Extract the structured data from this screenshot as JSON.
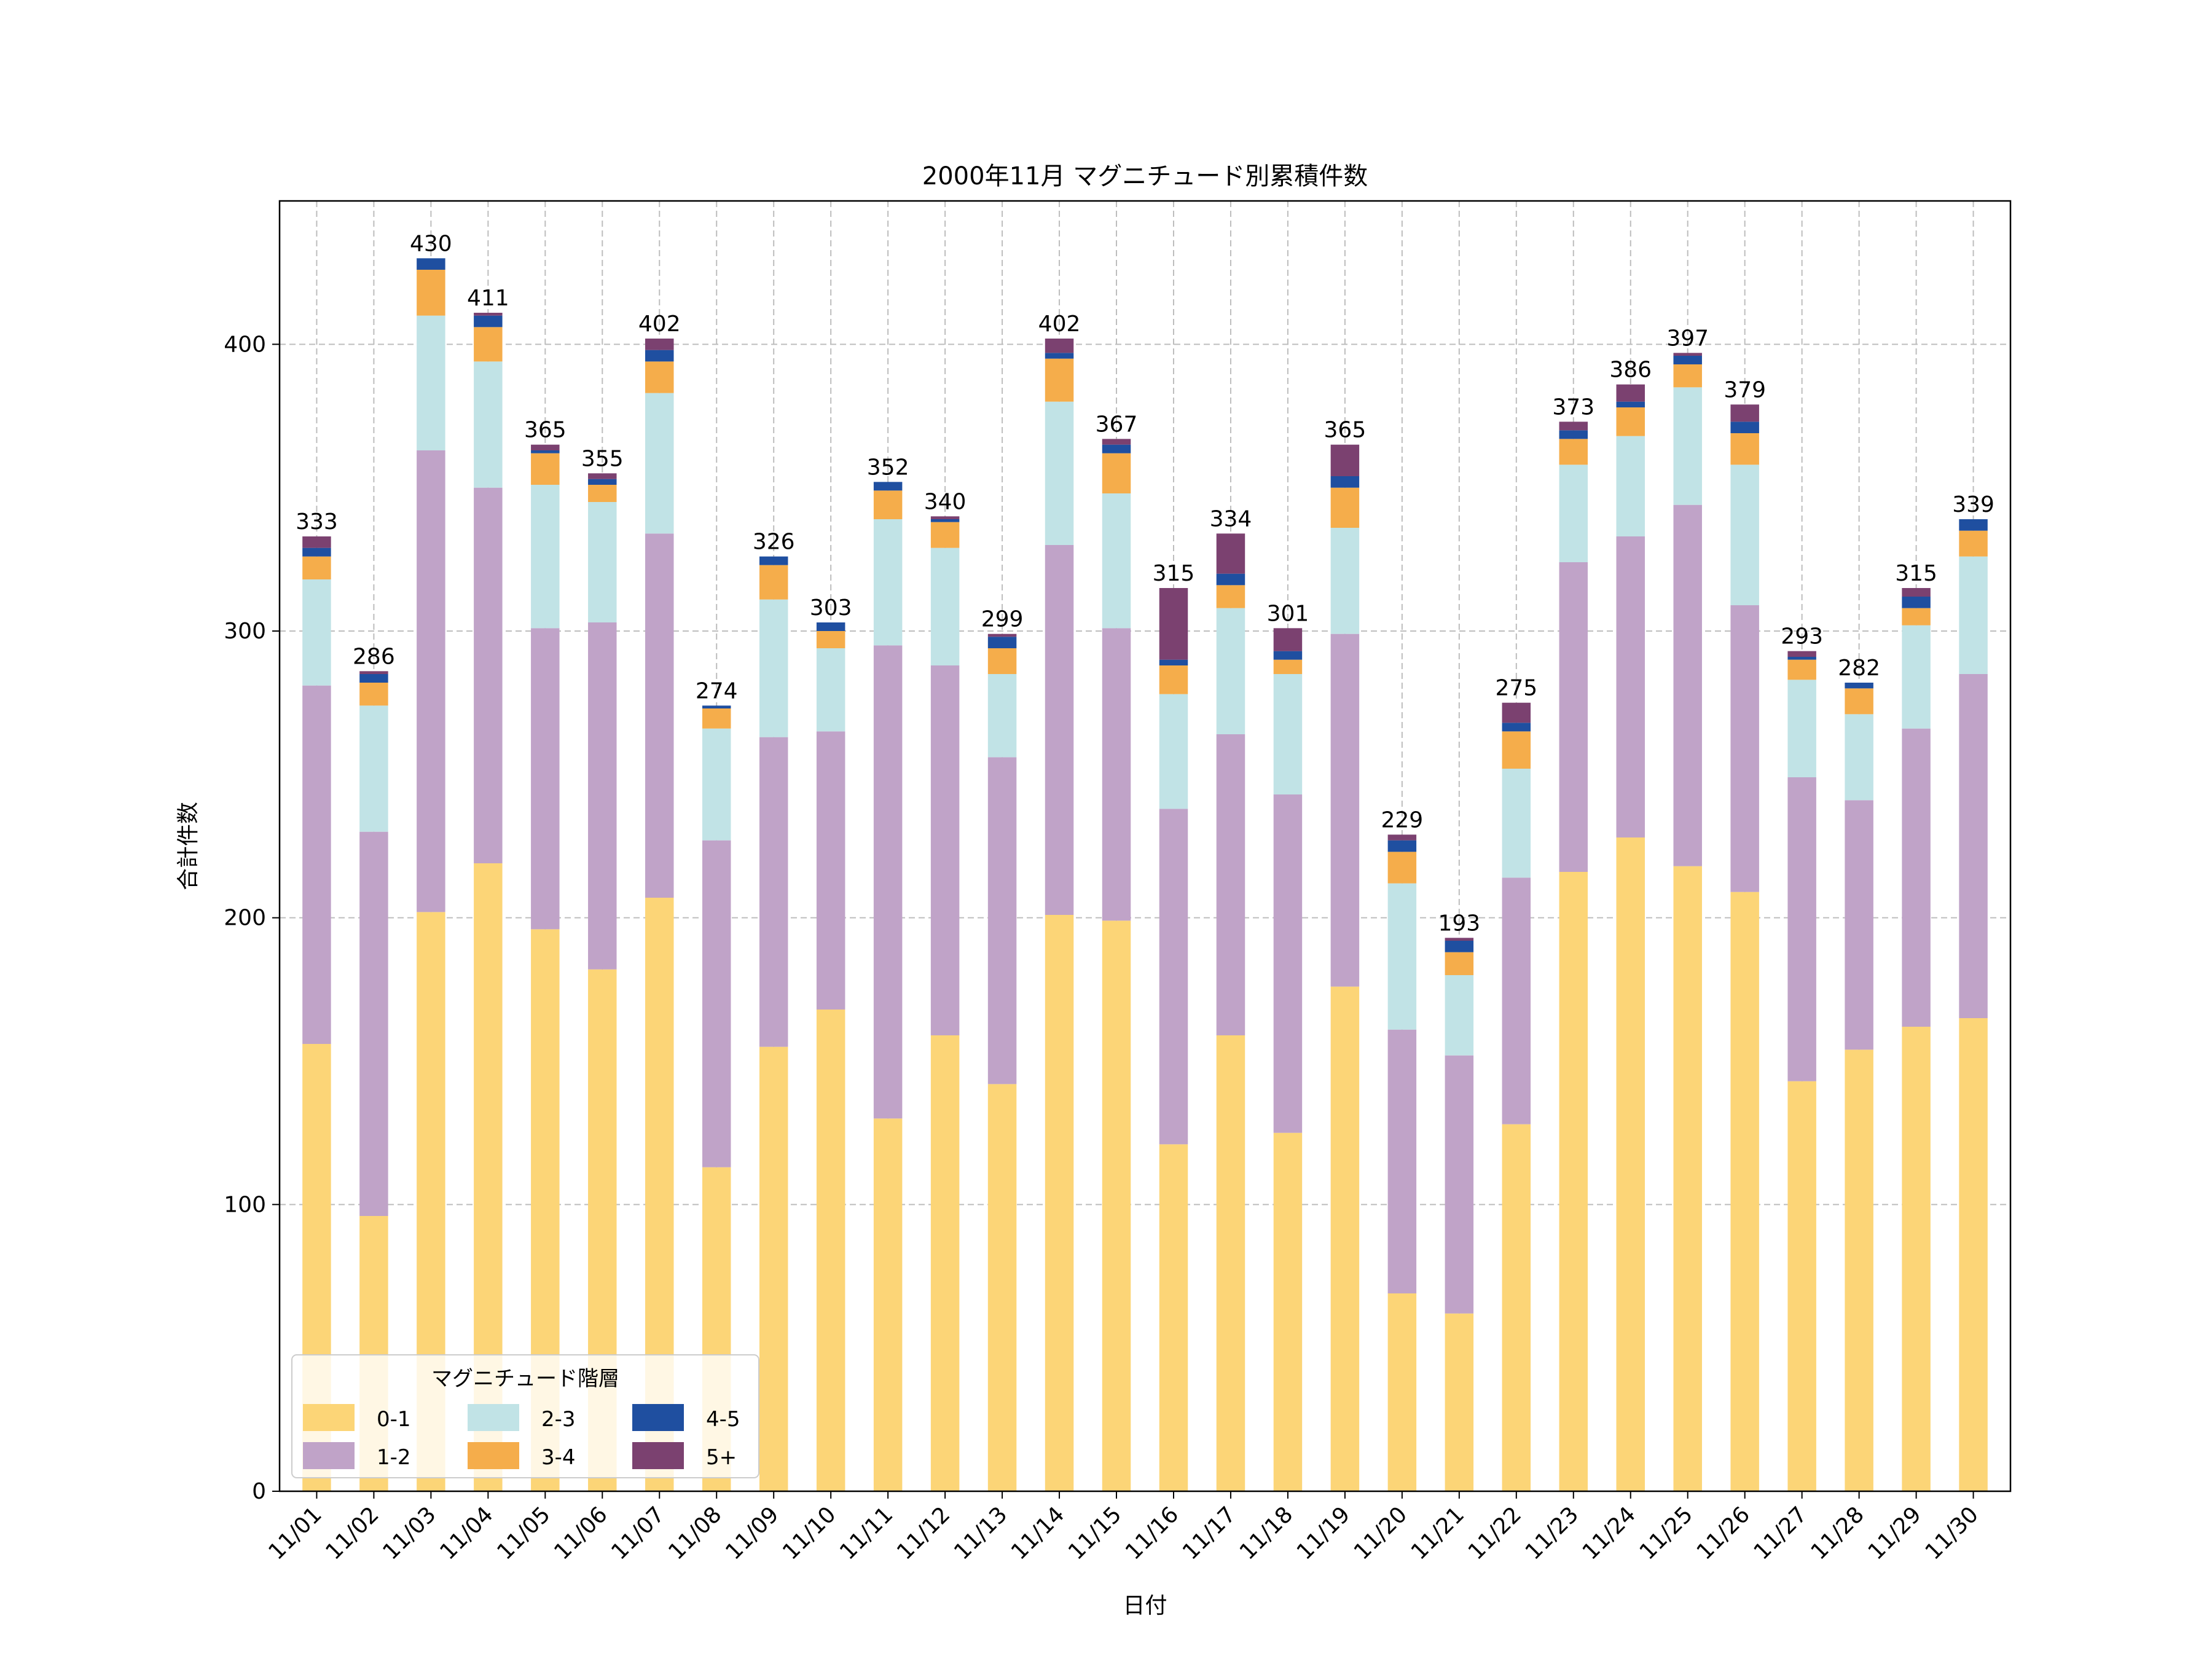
{
  "chart_data": {
    "type": "bar",
    "stacked": true,
    "title": "2000年11月 マグニチュード別累積件数",
    "xlabel": "日付",
    "ylabel": "合計件数",
    "ylim": [
      0,
      450
    ],
    "yticks": [
      0,
      100,
      200,
      300,
      400
    ],
    "grid": true,
    "legend": {
      "title": "マグニチュード階層",
      "placement": "bottom-left",
      "columns": 3
    },
    "categories": [
      "11/01",
      "11/02",
      "11/03",
      "11/04",
      "11/05",
      "11/06",
      "11/07",
      "11/08",
      "11/09",
      "11/10",
      "11/11",
      "11/12",
      "11/13",
      "11/14",
      "11/15",
      "11/16",
      "11/17",
      "11/18",
      "11/19",
      "11/20",
      "11/21",
      "11/22",
      "11/23",
      "11/24",
      "11/25",
      "11/26",
      "11/27",
      "11/28",
      "11/29",
      "11/30"
    ],
    "totals": [
      333,
      286,
      430,
      411,
      365,
      355,
      402,
      274,
      326,
      303,
      352,
      340,
      299,
      402,
      367,
      315,
      334,
      301,
      365,
      229,
      193,
      275,
      373,
      386,
      397,
      379,
      293,
      282,
      315,
      339
    ],
    "series": [
      {
        "name": "0-1",
        "color": "#fcd577",
        "values": [
          156,
          96,
          202,
          219,
          196,
          182,
          207,
          113,
          155,
          168,
          130,
          159,
          142,
          201,
          199,
          121,
          159,
          125,
          176,
          69,
          62,
          128,
          216,
          228,
          218,
          209,
          143,
          154,
          162,
          165
        ]
      },
      {
        "name": "1-2",
        "color": "#c0a3c8",
        "values": [
          125,
          134,
          161,
          131,
          105,
          121,
          127,
          114,
          108,
          97,
          165,
          129,
          114,
          129,
          102,
          117,
          105,
          118,
          123,
          92,
          90,
          86,
          108,
          105,
          126,
          100,
          106,
          87,
          104,
          120
        ]
      },
      {
        "name": "2-3",
        "color": "#c1e3e6",
        "values": [
          37,
          44,
          47,
          44,
          50,
          42,
          49,
          39,
          48,
          29,
          44,
          41,
          29,
          50,
          47,
          40,
          44,
          42,
          37,
          51,
          28,
          38,
          34,
          35,
          41,
          49,
          34,
          30,
          36,
          41
        ]
      },
      {
        "name": "3-4",
        "color": "#f5ad4b",
        "values": [
          8,
          8,
          16,
          12,
          11,
          6,
          11,
          7,
          12,
          6,
          10,
          9,
          9,
          15,
          14,
          10,
          8,
          5,
          14,
          11,
          8,
          13,
          9,
          10,
          8,
          11,
          7,
          9,
          6,
          9
        ]
      },
      {
        "name": "4-5",
        "color": "#1f4fa0",
        "values": [
          3,
          3,
          4,
          4,
          1,
          2,
          4,
          1,
          3,
          3,
          3,
          1,
          4,
          2,
          3,
          2,
          4,
          3,
          4,
          4,
          4,
          3,
          3,
          2,
          3,
          4,
          1,
          2,
          4,
          4
        ]
      },
      {
        "name": "5+",
        "color": "#7b4170",
        "values": [
          4,
          1,
          0,
          1,
          2,
          2,
          4,
          0,
          0,
          0,
          0,
          1,
          1,
          5,
          2,
          25,
          14,
          8,
          11,
          2,
          1,
          7,
          3,
          6,
          1,
          6,
          2,
          0,
          3,
          0
        ]
      }
    ]
  }
}
